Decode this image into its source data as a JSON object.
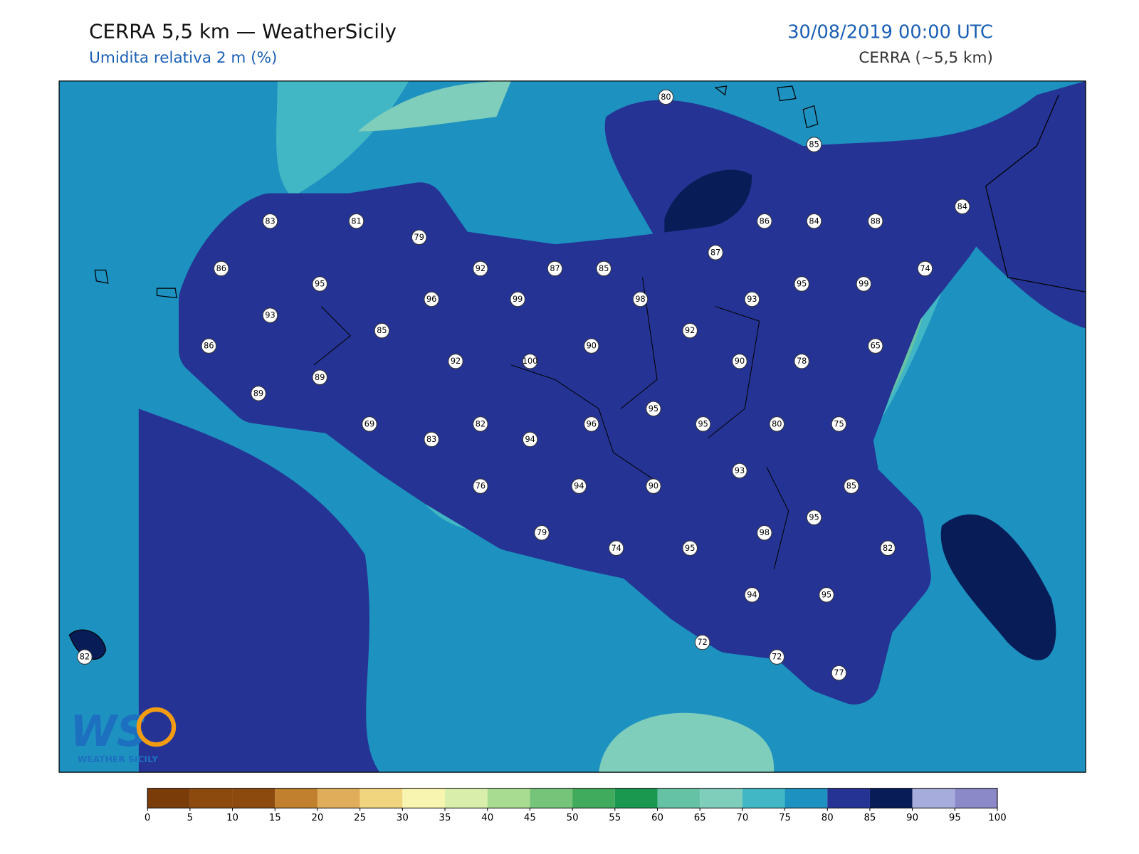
{
  "header": {
    "title": "CERRA 5,5 km — WeatherSicily",
    "subtitle": "Umidita relativa 2 m (%)",
    "datetime": "30/08/2019 00:00 UTC",
    "source": "CERRA (~5,5 km)"
  },
  "logo": {
    "mark": "WS",
    "caption": "WEATHER SICILY"
  },
  "stations": [
    80,
    85,
    83,
    81,
    79,
    86,
    84,
    88,
    84,
    87,
    86,
    92,
    87,
    85,
    74,
    95,
    95,
    99,
    96,
    99,
    98,
    93,
    93,
    92,
    85,
    90,
    65,
    86,
    100,
    92,
    90,
    78,
    89,
    89,
    95,
    69,
    82,
    96,
    95,
    80,
    75,
    83,
    94,
    93,
    76,
    94,
    90,
    85,
    95,
    79,
    98,
    95,
    74,
    82,
    94,
    95,
    72,
    72,
    77,
    82
  ],
  "colorbar": {
    "ticks": [
      0,
      5,
      10,
      15,
      20,
      25,
      30,
      35,
      40,
      45,
      50,
      55,
      60,
      65,
      70,
      75,
      80,
      85,
      90,
      95,
      100
    ],
    "colors": [
      "#7a3d0a",
      "#8c4a0f",
      "#8c4a0f",
      "#c0802e",
      "#e0ae5a",
      "#f0d47e",
      "#f7f5b0",
      "#d8eeaa",
      "#a8dc90",
      "#76c47a",
      "#41ab5d",
      "#1a9850",
      "#66c2a4",
      "#7fcdbb",
      "#41b6c4",
      "#1d91c0",
      "#253494",
      "#081d58",
      "#a6acdc",
      "#8c89c8"
    ]
  }
}
